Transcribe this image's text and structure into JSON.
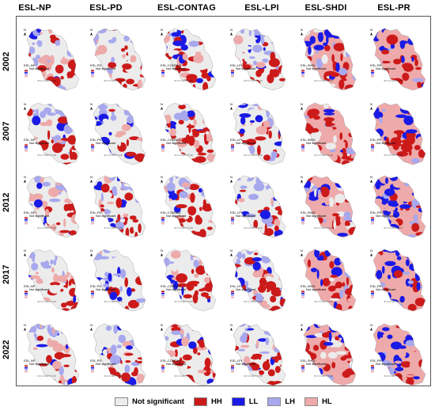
{
  "columns": [
    "ESL-NP",
    "ESL-PD",
    "ESL-CONTAG",
    "ESL-LPI",
    "ESL-SHDI",
    "ESL-PR"
  ],
  "rows": [
    "2002",
    "2007",
    "2012",
    "2017",
    "2022"
  ],
  "legend": [
    {
      "label": "Not significant",
      "color": "#ececec"
    },
    {
      "label": "HH",
      "color": "#cc1a1a"
    },
    {
      "label": "LL",
      "color": "#1a1ae6"
    },
    {
      "label": "LH",
      "color": "#a8a8ee"
    },
    {
      "label": "HL",
      "color": "#eeaaaa"
    }
  ],
  "mini_legend_label": "Not significant",
  "north_arrow_glyph": "N"
}
